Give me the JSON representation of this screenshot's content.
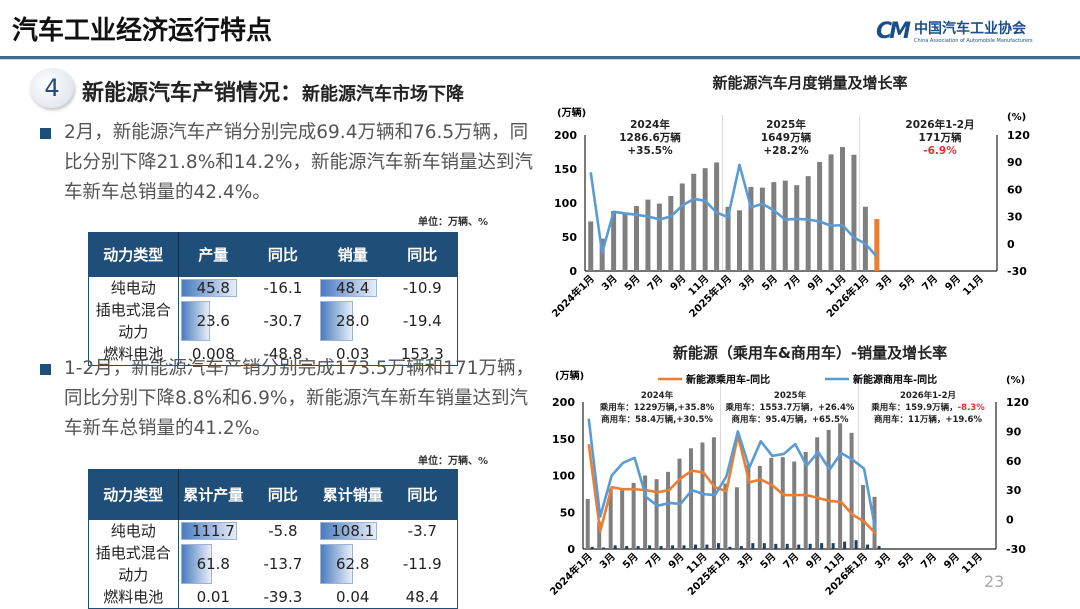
{
  "header": {
    "title": "汽车工业经济运行特点",
    "logo_mark": "CM",
    "logo_cn": "中国汽车工业协会",
    "logo_en": "China Association of Automobile Manufacturers"
  },
  "section": {
    "number": "4",
    "title": "新能源汽车产销情况：",
    "subtitle": "新能源汽车市场下降"
  },
  "bullets": [
    {
      "text": "2月，新能源汽车产销分别完成69.4万辆和76.5万辆，同比分别下降21.8%和14.2%，新能源汽车新车销量达到汽车新车总销量的42.4%。"
    },
    {
      "text": "1-2月，新能源汽车产销分别完成173.5万辆和171万辆，同比分别下降8.8%和6.9%，新能源汽车新车销量达到汽车新车总销量的41.2%。"
    }
  ],
  "tables": [
    {
      "unit": "单位：万辆、%",
      "headers": [
        "动力类型",
        "产量",
        "同比",
        "销量",
        "同比"
      ],
      "rows": [
        [
          "纯电动",
          "45.8",
          "-16.1",
          "48.4",
          "-10.9"
        ],
        [
          "插电式混合动力",
          "23.6",
          "-30.7",
          "28.0",
          "-19.4"
        ],
        [
          "燃料电池",
          "0.008",
          "-48.8",
          "0.03",
          "153.3"
        ]
      ]
    },
    {
      "unit": "单位：万辆、%",
      "headers": [
        "动力类型",
        "累计产量",
        "同比",
        "累计销量",
        "同比"
      ],
      "rows": [
        [
          "纯电动",
          "111.7",
          "-5.8",
          "108.1",
          "-3.7"
        ],
        [
          "插电式混合动力",
          "61.8",
          "-13.7",
          "62.8",
          "-11.9"
        ],
        [
          "燃料电池",
          "0.01",
          "-39.3",
          "0.04",
          "48.4"
        ]
      ]
    }
  ],
  "page_number": "23",
  "chart_data": [
    {
      "type": "bar+line",
      "title": "新能源汽车月度销量及增长率",
      "ylabel_left": "(万辆)",
      "ylabel_right": "(%)",
      "ylim_left": [
        0,
        200
      ],
      "yticks_left": [
        0,
        50,
        100,
        150,
        200
      ],
      "ylim_right": [
        -30,
        120
      ],
      "yticks_right": [
        -30,
        0,
        30,
        60,
        90,
        120
      ],
      "x_tick_labels": [
        "2024年1月",
        "3月",
        "5月",
        "7月",
        "9月",
        "11月",
        "2025年1月",
        "3月",
        "5月",
        "7月",
        "9月",
        "11月",
        "2026年1月",
        "3月",
        "5月",
        "7月",
        "9月",
        "11月"
      ],
      "months_total": 36,
      "series": [
        {
          "kind": "bar",
          "color": "#7f7f7f",
          "highlight_color": "#ed7d31",
          "values": [
            72.9,
            47.7,
            88.3,
            85,
            95.5,
            104.9,
            99.1,
            110.3,
            128.7,
            143,
            151.2,
            159.6,
            94.4,
            89.2,
            123.7,
            122.6,
            130.7,
            132.9,
            126.2,
            139.5,
            160.4,
            171.5,
            182.3,
            171,
            94.5,
            76.5
          ]
        },
        {
          "kind": "line",
          "axis": "right",
          "color": "#5b9bd5",
          "values": [
            78.8,
            -9.9,
            35.3,
            33.5,
            32,
            30.1,
            27,
            30,
            42.3,
            49.6,
            47.4,
            34.5,
            29.4,
            87.1,
            40.1,
            44.2,
            36.9,
            26.7,
            27.4,
            26.8,
            24.6,
            19.9,
            20.6,
            7,
            0.1,
            -14.2
          ]
        }
      ],
      "annotations": [
        {
          "lines": [
            "2024年",
            "1286.6万辆",
            "+35.5%"
          ]
        },
        {
          "lines": [
            "2025年",
            "1649万辆",
            "+28.2%"
          ]
        },
        {
          "lines": [
            "2026年1-2月",
            "171万辆",
            "-6.9%"
          ],
          "highlight_color": "#e03030"
        }
      ]
    },
    {
      "type": "bar+line",
      "title": "新能源（乘用车&商用车）-销量及增长率",
      "ylabel_left": "(万辆)",
      "ylabel_right": "(%)",
      "ylim_left": [
        0,
        200
      ],
      "yticks_left": [
        0,
        50,
        100,
        150,
        200
      ],
      "ylim_right": [
        -30,
        120
      ],
      "yticks_right": [
        -30,
        0,
        30,
        60,
        90,
        120
      ],
      "x_tick_labels": [
        "2024年1月",
        "3月",
        "5月",
        "7月",
        "9月",
        "11月",
        "2025年1月",
        "3月",
        "5月",
        "7月",
        "9月",
        "11月",
        "2026年1月",
        "3月",
        "5月",
        "7月",
        "9月",
        "11月"
      ],
      "months_total": 36,
      "legend": [
        "新能源乘用车-同比",
        "新能源商用车-同比"
      ],
      "series": [
        {
          "kind": "bar",
          "color": "#7f7f7f",
          "values": [
            68,
            37,
            82,
            80,
            90,
            100,
            95,
            105,
            123,
            137,
            145,
            152,
            89,
            84,
            114,
            113,
            124,
            125,
            119,
            132,
            152,
            162,
            171,
            158,
            87,
            71
          ]
        },
        {
          "kind": "bar",
          "color": "#1f3f60",
          "values": [
            3,
            2,
            5,
            4,
            4,
            5,
            4,
            5,
            5,
            6,
            6,
            8,
            3,
            4,
            8,
            8,
            7,
            7,
            6,
            7,
            8,
            8,
            10,
            12,
            6,
            4
          ]
        },
        {
          "kind": "line",
          "axis": "right",
          "name": "新能源乘用车-同比",
          "color": "#ed7d31",
          "values": [
            77,
            -12,
            33,
            31,
            31,
            30,
            28,
            30,
            42,
            50,
            48,
            33,
            29,
            86,
            38,
            41,
            35,
            25,
            25,
            25,
            22,
            19,
            18,
            5,
            -2,
            -14
          ]
        },
        {
          "kind": "line",
          "axis": "right",
          "name": "新能源商用车-同比",
          "color": "#5b9bd5",
          "values": [
            103,
            3,
            45,
            58,
            63,
            23,
            14,
            17,
            16,
            30,
            26,
            25,
            44,
            90,
            53,
            80,
            65,
            67,
            77,
            55,
            69,
            51,
            68,
            61,
            52,
            -11
          ]
        }
      ],
      "annotations": [
        {
          "lines": [
            "2024年",
            "乘用车：1229万辆,+35.8%",
            "商用车：58.4万辆,+30.5%"
          ]
        },
        {
          "lines": [
            "2025年",
            "乘用车：1553.7万辆，+26.4%",
            "商用车：95.4万辆，+65.5%"
          ]
        },
        {
          "lines": [
            "2026年1-2月",
            "乘用车：159.9万辆，-8.3%",
            "商用车：11万辆，+19.6%"
          ],
          "highlight": "-8.3%",
          "highlight_color": "#e03030"
        }
      ]
    }
  ]
}
